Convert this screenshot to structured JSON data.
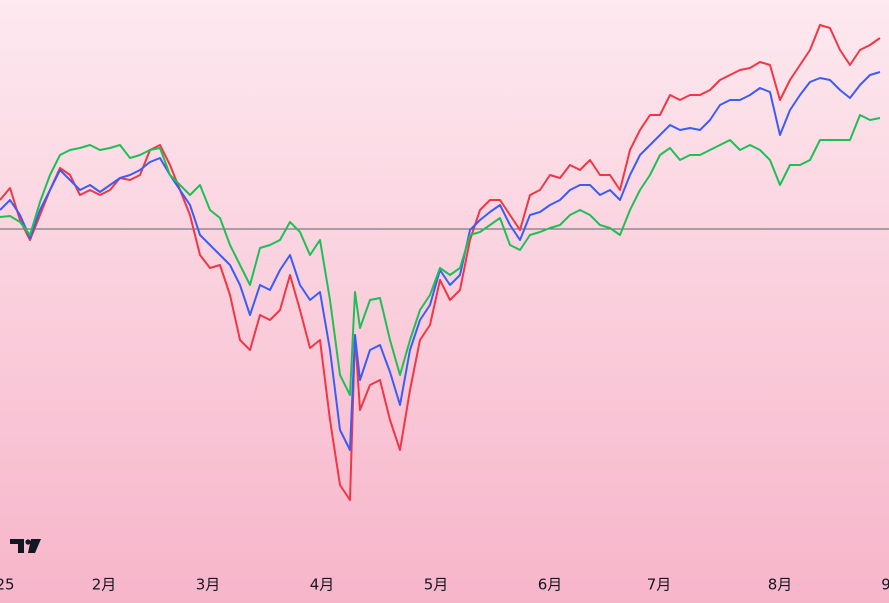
{
  "chart_data": {
    "type": "line",
    "x": [
      0,
      10,
      20,
      30,
      40,
      50,
      60,
      70,
      80,
      90,
      100,
      110,
      120,
      130,
      140,
      150,
      160,
      170,
      180,
      190,
      200,
      210,
      220,
      230,
      240,
      250,
      260,
      270,
      280,
      290,
      300,
      310,
      320,
      330,
      340,
      350,
      355,
      360,
      370,
      380,
      390,
      400,
      410,
      420,
      430,
      440,
      450,
      460,
      470,
      480,
      490,
      500,
      510,
      520,
      530,
      540,
      550,
      560,
      570,
      580,
      590,
      600,
      610,
      620,
      630,
      640,
      650,
      660,
      670,
      680,
      690,
      700,
      710,
      720,
      730,
      740,
      750,
      760,
      770,
      780,
      790,
      800,
      810,
      820,
      830,
      840,
      850,
      860,
      870,
      880
    ],
    "series": [
      {
        "color": "#f23645",
        "values": [
          29,
          41,
          9,
          -11,
          14,
          39,
          61,
          54,
          34,
          39,
          34,
          39,
          51,
          49,
          54,
          79,
          84,
          64,
          39,
          14,
          -26,
          -39,
          -36,
          -66,
          -111,
          -121,
          -86,
          -91,
          -81,
          -46,
          -81,
          -119,
          -111,
          -191,
          -256,
          -271,
          -106,
          -181,
          -156,
          -151,
          -191,
          -221,
          -161,
          -111,
          -96,
          -51,
          -71,
          -61,
          -11,
          19,
          29,
          29,
          14,
          -1,
          34,
          39,
          54,
          51,
          64,
          59,
          69,
          54,
          54,
          39,
          79,
          99,
          114,
          114,
          134,
          129,
          134,
          134,
          139,
          149,
          154,
          159,
          161,
          167,
          164,
          129,
          149,
          164,
          179,
          204,
          201,
          179,
          164,
          179,
          184,
          191
        ]
      },
      {
        "color": "#3d5cf5",
        "values": [
          19,
          29,
          14,
          -9,
          19,
          39,
          59,
          49,
          39,
          44,
          37,
          44,
          51,
          54,
          59,
          67,
          71,
          54,
          39,
          24,
          -6,
          -16,
          -26,
          -36,
          -56,
          -86,
          -56,
          -61,
          -41,
          -26,
          -56,
          -71,
          -63,
          -121,
          -201,
          -221,
          -106,
          -151,
          -121,
          -116,
          -143,
          -176,
          -121,
          -91,
          -76,
          -41,
          -56,
          -46,
          -1,
          9,
          17,
          24,
          4,
          -11,
          14,
          17,
          24,
          29,
          39,
          44,
          44,
          34,
          39,
          29,
          54,
          74,
          84,
          94,
          104,
          99,
          101,
          99,
          109,
          124,
          129,
          129,
          134,
          141,
          137,
          94,
          119,
          134,
          147,
          151,
          149,
          139,
          131,
          144,
          154,
          157
        ]
      },
      {
        "color": "#1fbf55",
        "values": [
          12,
          13,
          7,
          -6,
          27,
          54,
          74,
          79,
          81,
          84,
          79,
          81,
          84,
          71,
          74,
          79,
          81,
          54,
          44,
          34,
          44,
          19,
          11,
          -16,
          -36,
          -56,
          -19,
          -16,
          -11,
          7,
          -3,
          -26,
          -11,
          -71,
          -146,
          -166,
          -63,
          -99,
          -71,
          -69,
          -111,
          -146,
          -111,
          -81,
          -66,
          -39,
          -46,
          -39,
          -6,
          -3,
          4,
          11,
          -16,
          -21,
          -6,
          -3,
          1,
          4,
          14,
          19,
          14,
          4,
          1,
          -6,
          19,
          39,
          54,
          74,
          81,
          69,
          74,
          74,
          79,
          84,
          89,
          79,
          84,
          79,
          69,
          44,
          64,
          64,
          69,
          89,
          89,
          89,
          89,
          114,
          109,
          111
        ]
      }
    ],
    "baseline": 0,
    "xlim": [
      0,
      889
    ],
    "ylim": [
      -336,
      229
    ],
    "xticks": [
      {
        "value": 5,
        "label": "25"
      },
      {
        "value": 104,
        "label": "2月"
      },
      {
        "value": 208,
        "label": "3月"
      },
      {
        "value": 322,
        "label": "4月"
      },
      {
        "value": 436,
        "label": "5月"
      },
      {
        "value": 550,
        "label": "6月"
      },
      {
        "value": 659,
        "label": "7月"
      },
      {
        "value": 780,
        "label": "8月"
      },
      {
        "value": 886,
        "label": "9"
      }
    ]
  }
}
